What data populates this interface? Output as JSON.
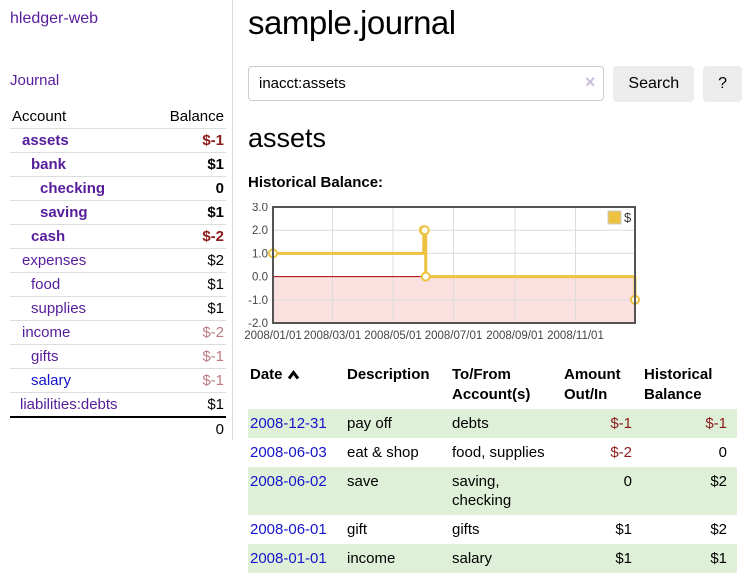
{
  "app": {
    "title": "hledger-web"
  },
  "sidebar": {
    "journal_label": "Journal",
    "accounts_table": {
      "col_account": "Account",
      "col_balance": "Balance",
      "rows": [
        {
          "name": "assets",
          "balance": "$-1"
        },
        {
          "name": "bank",
          "balance": "$1"
        },
        {
          "name": "checking",
          "balance": "0"
        },
        {
          "name": "saving",
          "balance": "$1"
        },
        {
          "name": "cash",
          "balance": "$-2"
        },
        {
          "name": "expenses",
          "balance": "$2"
        },
        {
          "name": "food",
          "balance": "$1"
        },
        {
          "name": "supplies",
          "balance": "$1"
        },
        {
          "name": "income",
          "balance": "$-2"
        },
        {
          "name": "gifts",
          "balance": "$-1"
        },
        {
          "name": "salary",
          "balance": "$-1"
        },
        {
          "name": "liabilities:debts",
          "balance": "$1"
        }
      ],
      "total": "0"
    }
  },
  "main": {
    "title": "sample.journal",
    "search": {
      "value": "inacct:assets",
      "clear_icon": "×",
      "search_label": "Search",
      "help_label": "?"
    },
    "account_heading": "assets",
    "chart_heading": "Historical Balance:",
    "register_table": {
      "headers": {
        "date": "Date",
        "description": "Description",
        "accounts": "To/From Account(s)",
        "amount": "Amount Out/In",
        "balance": "Historical Balance"
      },
      "rows": [
        {
          "date": "2008-12-31",
          "description": "pay off",
          "accounts": "debts",
          "amount": "$-1",
          "balance": "$-1"
        },
        {
          "date": "2008-06-03",
          "description": "eat & shop",
          "accounts": "food, supplies",
          "amount": "$-2",
          "balance": "0"
        },
        {
          "date": "2008-06-02",
          "description": "save",
          "accounts": "saving, checking",
          "amount": "0",
          "balance": "$2"
        },
        {
          "date": "2008-06-01",
          "description": "gift",
          "accounts": "gifts",
          "amount": "$1",
          "balance": "$2"
        },
        {
          "date": "2008-01-01",
          "description": "income",
          "accounts": "salary",
          "amount": "$1",
          "balance": "$1"
        }
      ]
    }
  },
  "chart_data": {
    "type": "line",
    "step": true,
    "title": "Historical Balance",
    "xlabel": "",
    "ylabel": "",
    "xlim_days": [
      0,
      365
    ],
    "ylim": [
      -2.0,
      3.0
    ],
    "grid": true,
    "legend_position": "top-right",
    "series": [
      {
        "name": "$",
        "color": "#edc240",
        "points": [
          {
            "date": "2008-01-01",
            "day": 0,
            "value": 1
          },
          {
            "date": "2008-06-01",
            "day": 152,
            "value": 2
          },
          {
            "date": "2008-06-02",
            "day": 153,
            "value": 2
          },
          {
            "date": "2008-06-03",
            "day": 154,
            "value": 0
          },
          {
            "date": "2008-12-31",
            "day": 365,
            "value": -1
          }
        ]
      }
    ],
    "x_ticks": [
      {
        "label": "2008/01/01",
        "day": 0
      },
      {
        "label": "2008/03/01",
        "day": 60
      },
      {
        "label": "2008/05/01",
        "day": 121
      },
      {
        "label": "2008/07/01",
        "day": 182
      },
      {
        "label": "2008/09/01",
        "day": 244
      },
      {
        "label": "2008/11/01",
        "day": 305
      }
    ],
    "y_ticks": [
      {
        "label": "3.0",
        "value": 3
      },
      {
        "label": "2.0",
        "value": 2
      },
      {
        "label": "1.0",
        "value": 1
      },
      {
        "label": "0.0",
        "value": 0
      },
      {
        "label": "-1.0",
        "value": -1
      },
      {
        "label": "-2.0",
        "value": -2
      }
    ],
    "colors": {
      "series": "#edc240",
      "negative_region_fill": "#fbe0e0",
      "zero_line": "#aa0000",
      "border": "#545454",
      "gridline": "#dcdcdc",
      "tick_label": "#444444"
    }
  }
}
